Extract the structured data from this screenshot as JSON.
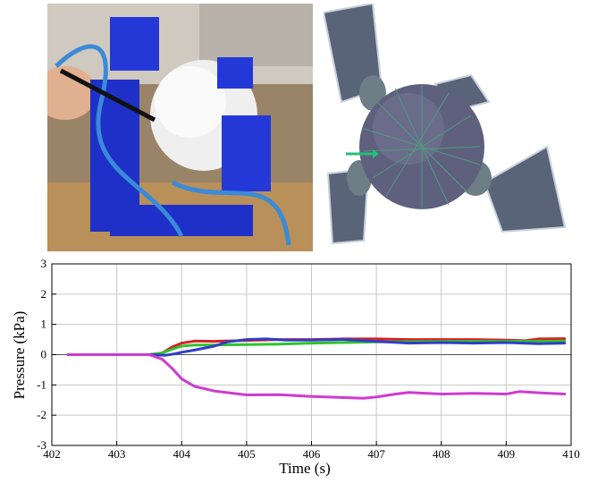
{
  "panels": {
    "left_photo": {
      "icon": "soft-robot-photo",
      "description_icon": "blue-3d-printed-frame-with-white-sphere"
    },
    "right_render": {
      "icon": "simulation-render",
      "description_icon": "meshed-sphere-with-cups"
    }
  },
  "colors": {
    "red": "#d62222",
    "green": "#2fc22f",
    "blue": "#2f3ec8",
    "magenta": "#d03ad0",
    "grid": "#c8c8c8",
    "axis": "#000000",
    "zero_line": "#555555"
  },
  "chart_data": {
    "type": "line",
    "title": "",
    "xlabel": "Time (s)",
    "ylabel": "Pressure (kPa)",
    "xlim": [
      402,
      410
    ],
    "ylim": [
      -3,
      3
    ],
    "x_ticks": [
      "402",
      "403",
      "404",
      "405",
      "406",
      "407",
      "408",
      "409",
      "410"
    ],
    "y_ticks": [
      "-3",
      "-2",
      "-1",
      "0",
      "1",
      "2",
      "3"
    ],
    "grid": true,
    "legend": "none",
    "series": [
      {
        "color": "#d62222",
        "x": [
          402.25,
          403.5,
          403.7,
          403.85,
          404.0,
          404.2,
          404.5,
          405.0,
          405.5,
          406.0,
          406.5,
          407.0,
          407.5,
          408.0,
          408.5,
          409.0,
          409.3,
          409.5,
          409.9
        ],
        "y": [
          0.0,
          0.0,
          0.05,
          0.25,
          0.38,
          0.45,
          0.44,
          0.47,
          0.5,
          0.5,
          0.52,
          0.52,
          0.5,
          0.5,
          0.5,
          0.48,
          0.46,
          0.52,
          0.53
        ]
      },
      {
        "color": "#2fc22f",
        "x": [
          402.25,
          403.5,
          403.7,
          403.85,
          404.0,
          404.2,
          404.5,
          405.0,
          405.5,
          406.0,
          406.5,
          407.0,
          407.5,
          408.0,
          408.5,
          409.0,
          409.5,
          409.9
        ],
        "y": [
          0.0,
          0.0,
          0.05,
          0.18,
          0.28,
          0.32,
          0.32,
          0.33,
          0.35,
          0.38,
          0.4,
          0.42,
          0.43,
          0.44,
          0.44,
          0.44,
          0.44,
          0.45
        ]
      },
      {
        "color": "#2f3ec8",
        "x": [
          402.25,
          403.5,
          403.75,
          403.9,
          404.0,
          404.2,
          404.5,
          404.7,
          405.0,
          405.3,
          405.6,
          406.0,
          406.5,
          407.0,
          407.5,
          408.0,
          408.5,
          409.0,
          409.5,
          409.9
        ],
        "y": [
          0.0,
          0.0,
          -0.02,
          0.03,
          0.08,
          0.15,
          0.28,
          0.42,
          0.5,
          0.52,
          0.48,
          0.48,
          0.5,
          0.44,
          0.38,
          0.4,
          0.38,
          0.4,
          0.36,
          0.38
        ]
      },
      {
        "color": "#d03ad0",
        "x": [
          402.25,
          403.5,
          403.7,
          403.85,
          404.0,
          404.2,
          404.5,
          405.0,
          405.5,
          406.0,
          406.5,
          406.8,
          407.0,
          407.3,
          407.5,
          408.0,
          408.5,
          409.0,
          409.2,
          409.5,
          409.9
        ],
        "y": [
          0.0,
          0.0,
          -0.15,
          -0.45,
          -0.8,
          -1.05,
          -1.2,
          -1.33,
          -1.32,
          -1.38,
          -1.42,
          -1.44,
          -1.4,
          -1.3,
          -1.25,
          -1.3,
          -1.28,
          -1.3,
          -1.22,
          -1.26,
          -1.3
        ]
      }
    ]
  }
}
